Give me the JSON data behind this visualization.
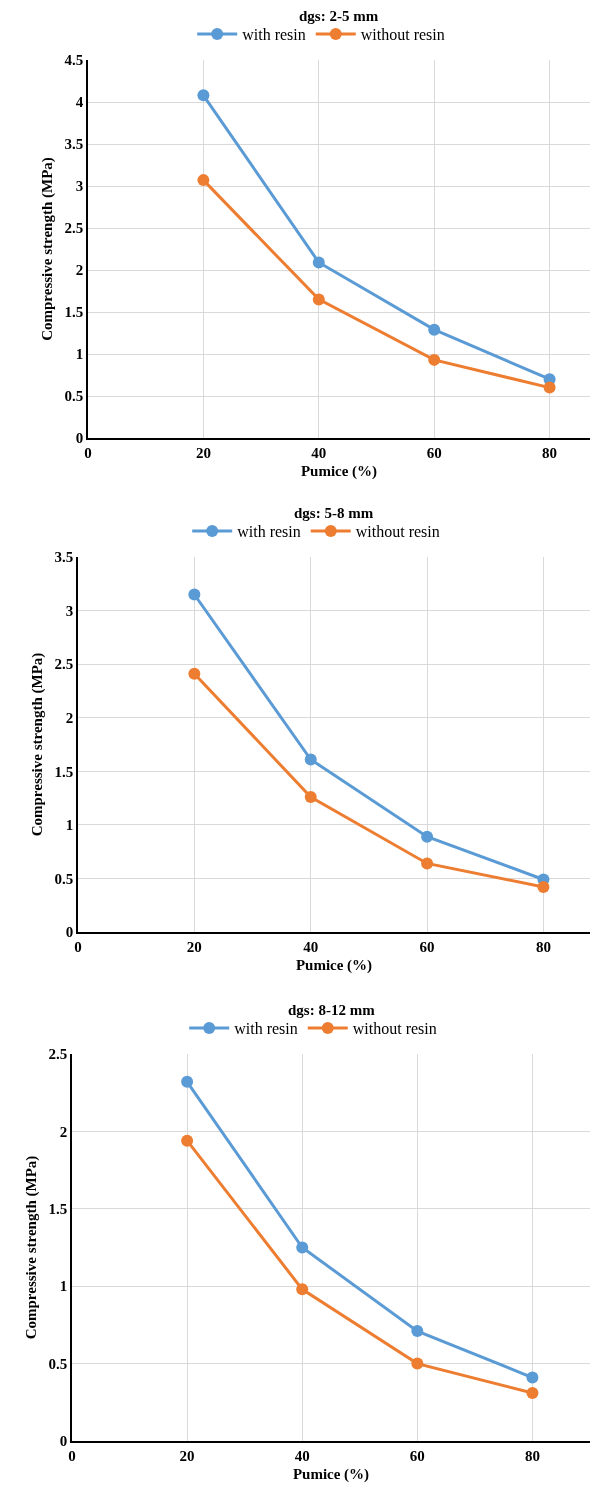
{
  "chart_data": [
    {
      "type": "line",
      "title": "dgs: 2-5 mm",
      "xlabel": "Pumice (%)",
      "ylabel": "Compressive strength (MPa)",
      "x": [
        20,
        40,
        60,
        80
      ],
      "xlim": [
        0,
        87
      ],
      "xticks": [
        0,
        20,
        40,
        60,
        80
      ],
      "ylim": [
        0,
        4.5
      ],
      "yticks": [
        0,
        0.5,
        1,
        1.5,
        2,
        2.5,
        3,
        3.5,
        4,
        4.5
      ],
      "grid": true,
      "legend": "top",
      "marker": "circle",
      "line_style": "solid",
      "series": [
        {
          "name": "with resin",
          "color": "#5b9bd5",
          "values": [
            4.08,
            2.09,
            1.29,
            0.7
          ]
        },
        {
          "name": "without resin",
          "color": "#ed7d31",
          "values": [
            3.07,
            1.65,
            0.93,
            0.6
          ]
        }
      ]
    },
    {
      "type": "line",
      "title": "dgs: 5-8 mm",
      "xlabel": "Pumice (%)",
      "ylabel": "Compressive strength (MPa)",
      "x": [
        20,
        40,
        60,
        80
      ],
      "xlim": [
        0,
        88
      ],
      "xticks": [
        0,
        20,
        40,
        60,
        80
      ],
      "ylim": [
        0,
        3.5
      ],
      "yticks": [
        0,
        0.5,
        1,
        1.5,
        2,
        2.5,
        3,
        3.5
      ],
      "grid": true,
      "legend": "top",
      "marker": "circle",
      "line_style": "solid",
      "series": [
        {
          "name": "with resin",
          "color": "#5b9bd5",
          "values": [
            3.15,
            1.61,
            0.89,
            0.49
          ]
        },
        {
          "name": "without resin",
          "color": "#ed7d31",
          "values": [
            2.41,
            1.26,
            0.64,
            0.42
          ]
        }
      ]
    },
    {
      "type": "line",
      "title": "dgs: 8-12 mm",
      "xlabel": "Pumice (%)",
      "ylabel": "Compressive strength (MPa)",
      "x": [
        20,
        40,
        60,
        80
      ],
      "xlim": [
        0,
        90
      ],
      "xticks": [
        0,
        20,
        40,
        60,
        80
      ],
      "ylim": [
        0,
        2.5
      ],
      "yticks": [
        0,
        0.5,
        1,
        1.5,
        2,
        2.5
      ],
      "grid": true,
      "legend": "top",
      "marker": "circle",
      "line_style": "solid",
      "series": [
        {
          "name": "with resin",
          "color": "#5b9bd5",
          "values": [
            2.32,
            1.25,
            0.71,
            0.41
          ]
        },
        {
          "name": "without resin",
          "color": "#ed7d31",
          "values": [
            1.94,
            0.98,
            0.5,
            0.31
          ]
        }
      ]
    }
  ]
}
